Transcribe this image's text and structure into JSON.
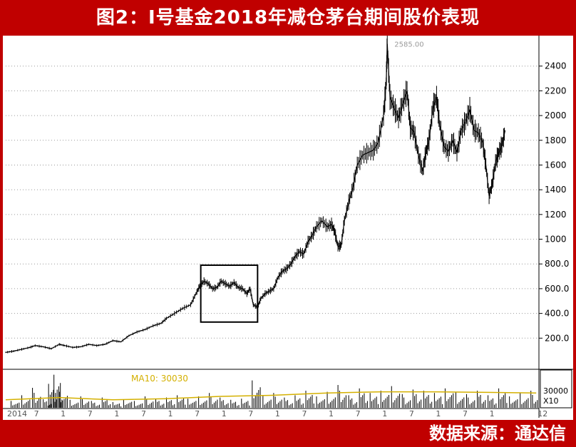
{
  "title": "图2：I号基金2018年减仓茅台期间股价表现",
  "source": "数据来源：通达信",
  "colors": {
    "frame": "#c00000",
    "price": "#000000",
    "ma": "#d4b000",
    "grid": "#9a9a9a",
    "box": "#000000"
  },
  "chart_data": [
    {
      "type": "line",
      "panel": "price",
      "series": [
        {
          "values": [
            [
              2014.0,
              85
            ],
            [
              2014.15,
              95
            ],
            [
              2014.3,
              110
            ],
            [
              2014.45,
              125
            ],
            [
              2014.55,
              140
            ],
            [
              2014.7,
              130
            ],
            [
              2014.85,
              115
            ],
            [
              2015.0,
              150
            ],
            [
              2015.1,
              140
            ],
            [
              2015.25,
              125
            ],
            [
              2015.4,
              130
            ],
            [
              2015.55,
              150
            ],
            [
              2015.7,
              140
            ],
            [
              2015.85,
              150
            ],
            [
              2016.0,
              180
            ],
            [
              2016.15,
              170
            ],
            [
              2016.3,
              220
            ],
            [
              2016.45,
              250
            ],
            [
              2016.6,
              270
            ],
            [
              2016.75,
              300
            ],
            [
              2016.9,
              320
            ],
            [
              2017.0,
              360
            ],
            [
              2017.15,
              400
            ],
            [
              2017.3,
              440
            ],
            [
              2017.45,
              470
            ],
            [
              2017.55,
              560
            ],
            [
              2017.62,
              620
            ],
            [
              2017.7,
              660
            ],
            [
              2017.78,
              640
            ],
            [
              2017.86,
              600
            ],
            [
              2017.94,
              610
            ],
            [
              2018.02,
              660
            ],
            [
              2018.1,
              640
            ],
            [
              2018.18,
              620
            ],
            [
              2018.26,
              650
            ],
            [
              2018.34,
              610
            ],
            [
              2018.42,
              600
            ],
            [
              2018.5,
              560
            ],
            [
              2018.56,
              600
            ],
            [
              2018.62,
              470
            ],
            [
              2018.7,
              450
            ],
            [
              2018.76,
              520
            ],
            [
              2018.84,
              560
            ],
            [
              2018.92,
              580
            ],
            [
              2019.0,
              600
            ],
            [
              2019.08,
              690
            ],
            [
              2019.16,
              740
            ],
            [
              2019.24,
              760
            ],
            [
              2019.32,
              800
            ],
            [
              2019.4,
              860
            ],
            [
              2019.48,
              900
            ],
            [
              2019.56,
              880
            ],
            [
              2019.64,
              980
            ],
            [
              2019.72,
              1030
            ],
            [
              2019.8,
              1100
            ],
            [
              2019.9,
              1150
            ],
            [
              2020.0,
              1100
            ],
            [
              2020.08,
              1120
            ],
            [
              2020.14,
              1060
            ],
            [
              2020.2,
              940
            ],
            [
              2020.26,
              950
            ],
            [
              2020.32,
              1150
            ],
            [
              2020.4,
              1300
            ],
            [
              2020.48,
              1420
            ],
            [
              2020.56,
              1600
            ],
            [
              2020.66,
              1680
            ],
            [
              2020.76,
              1700
            ],
            [
              2020.86,
              1720
            ],
            [
              2020.95,
              1780
            ],
            [
              2021.05,
              2000
            ],
            [
              2021.1,
              2260
            ],
            [
              2021.12,
              2580
            ],
            [
              2021.17,
              2150
            ],
            [
              2021.25,
              2060
            ],
            [
              2021.33,
              1980
            ],
            [
              2021.41,
              2100
            ],
            [
              2021.49,
              2200
            ],
            [
              2021.55,
              1900
            ],
            [
              2021.62,
              1870
            ],
            [
              2021.7,
              1680
            ],
            [
              2021.78,
              1550
            ],
            [
              2021.84,
              1700
            ],
            [
              2021.9,
              1800
            ],
            [
              2021.97,
              2060
            ],
            [
              2022.04,
              2150
            ],
            [
              2022.1,
              1920
            ],
            [
              2022.18,
              1750
            ],
            [
              2022.26,
              1710
            ],
            [
              2022.34,
              1800
            ],
            [
              2022.42,
              1700
            ],
            [
              2022.5,
              1880
            ],
            [
              2022.58,
              1950
            ],
            [
              2022.66,
              2050
            ],
            [
              2022.74,
              1880
            ],
            [
              2022.82,
              1860
            ],
            [
              2022.9,
              1780
            ],
            [
              2022.96,
              1600
            ],
            [
              2023.02,
              1350
            ],
            [
              2023.08,
              1450
            ],
            [
              2023.14,
              1620
            ],
            [
              2023.2,
              1700
            ],
            [
              2023.26,
              1760
            ],
            [
              2023.32,
              1880
            ]
          ]
        }
      ],
      "annotations": [
        "2585.00"
      ],
      "ylim": [
        0,
        2600
      ],
      "y_ticks": [
        "200.0",
        "400.0",
        "600.0",
        "800.0",
        "1000",
        "1200",
        "1400",
        "1600",
        "1800",
        "2000",
        "2200",
        "2400"
      ],
      "x_ticks": [
        {
          "label": "2014",
          "x": 2014.0
        },
        {
          "label": "7",
          "x": 2014.5
        },
        {
          "label": "1",
          "x": 2015.0
        },
        {
          "label": "7",
          "x": 2015.5
        },
        {
          "label": "1",
          "x": 2016.0
        },
        {
          "label": "7",
          "x": 2016.5
        },
        {
          "label": "1",
          "x": 2017.0
        },
        {
          "label": "7",
          "x": 2017.5
        },
        {
          "label": "1",
          "x": 2018.0
        },
        {
          "label": "7",
          "x": 2018.5
        },
        {
          "label": "1",
          "x": 2019.0
        },
        {
          "label": "7",
          "x": 2019.5
        },
        {
          "label": "1",
          "x": 2020.0
        },
        {
          "label": "7",
          "x": 2020.5
        },
        {
          "label": "1",
          "x": 2021.0
        },
        {
          "label": "7",
          "x": 2021.5
        },
        {
          "label": "1",
          "x": 2022.0
        },
        {
          "label": "7",
          "x": 2022.5
        },
        {
          "label": "1",
          "x": 2023.0
        },
        {
          "label": "12",
          "x": 2023.9
        }
      ],
      "highlight_box": {
        "x_start": 2017.64,
        "x_end": 2018.7,
        "y_low": 330,
        "y_high": 790
      },
      "grid": true
    },
    {
      "type": "bar",
      "panel": "volume",
      "indicator_label": "MA10: 30030",
      "y_ticks": [
        "30000"
      ],
      "scale_label": "X10",
      "bars": [
        [
          2014.1,
          12000
        ],
        [
          2014.3,
          22000
        ],
        [
          2014.5,
          35000
        ],
        [
          2014.7,
          15000
        ],
        [
          2014.8,
          42000
        ],
        [
          2014.9,
          58000
        ],
        [
          2015.0,
          28000
        ],
        [
          2015.2,
          14000
        ],
        [
          2015.4,
          20000
        ],
        [
          2015.6,
          12000
        ],
        [
          2015.8,
          18000
        ],
        [
          2016.0,
          10000
        ],
        [
          2016.2,
          14000
        ],
        [
          2016.4,
          12000
        ],
        [
          2016.6,
          20000
        ],
        [
          2016.8,
          16000
        ],
        [
          2017.0,
          18000
        ],
        [
          2017.2,
          22000
        ],
        [
          2017.4,
          16000
        ],
        [
          2017.6,
          20000
        ],
        [
          2017.8,
          26000
        ],
        [
          2018.0,
          18000
        ],
        [
          2018.2,
          14000
        ],
        [
          2018.4,
          16000
        ],
        [
          2018.6,
          48000
        ],
        [
          2018.8,
          22000
        ],
        [
          2019.0,
          26000
        ],
        [
          2019.2,
          18000
        ],
        [
          2019.4,
          22000
        ],
        [
          2019.6,
          30000
        ],
        [
          2019.8,
          20000
        ],
        [
          2020.0,
          28000
        ],
        [
          2020.2,
          40000
        ],
        [
          2020.4,
          22000
        ],
        [
          2020.6,
          34000
        ],
        [
          2020.8,
          26000
        ],
        [
          2021.0,
          30000
        ],
        [
          2021.2,
          38000
        ],
        [
          2021.4,
          24000
        ],
        [
          2021.6,
          32000
        ],
        [
          2021.8,
          30000
        ],
        [
          2022.0,
          26000
        ],
        [
          2022.2,
          34000
        ],
        [
          2022.4,
          28000
        ],
        [
          2022.6,
          24000
        ],
        [
          2022.8,
          30000
        ],
        [
          2023.0,
          22000
        ],
        [
          2023.2,
          34000
        ],
        [
          2023.4,
          20000
        ],
        [
          2023.6,
          26000
        ],
        [
          2023.8,
          30000
        ]
      ],
      "ma_line": [
        [
          2014.0,
          14000
        ],
        [
          2015.0,
          18000
        ],
        [
          2016.0,
          14000
        ],
        [
          2017.0,
          16000
        ],
        [
          2018.0,
          20000
        ],
        [
          2019.0,
          22000
        ],
        [
          2020.0,
          26000
        ],
        [
          2021.0,
          28000
        ],
        [
          2022.0,
          28000
        ],
        [
          2023.0,
          27000
        ],
        [
          2023.9,
          26000
        ]
      ]
    }
  ]
}
